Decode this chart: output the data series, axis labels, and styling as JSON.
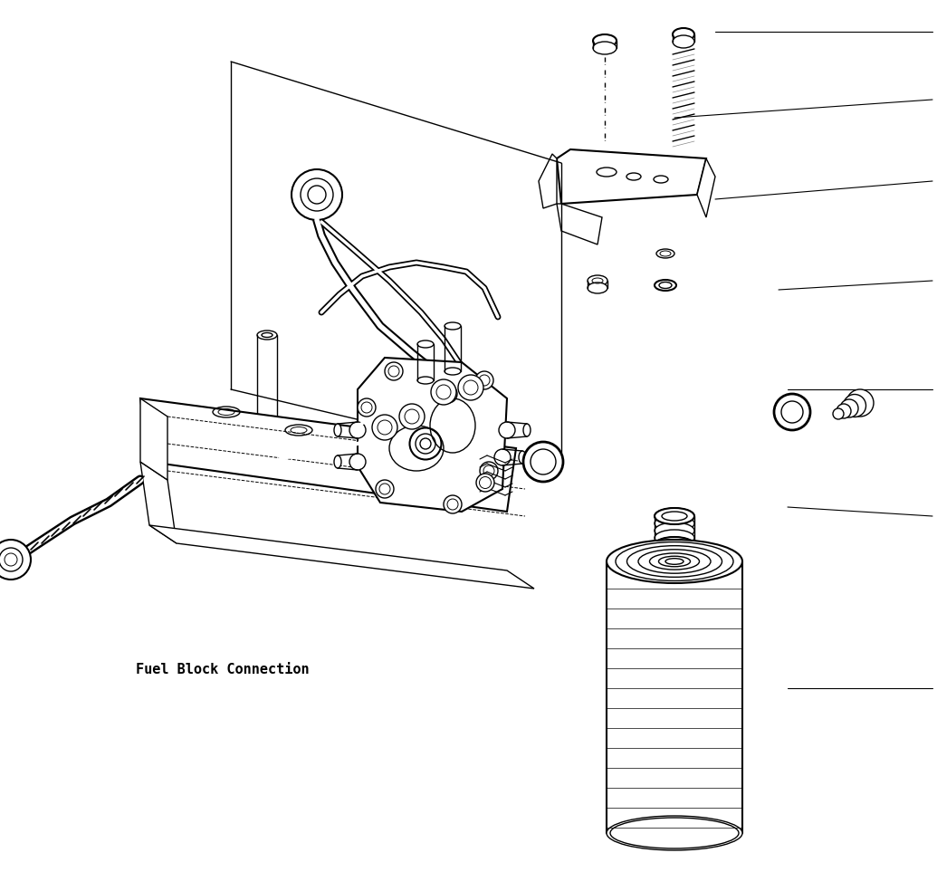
{
  "bg_color": "#ffffff",
  "line_color": "#000000",
  "label_color": "#000000",
  "fuel_block_label": "Fuel Block Connection",
  "label_fontsize": 11,
  "figsize": [
    10.35,
    9.63
  ],
  "dpi": 100
}
